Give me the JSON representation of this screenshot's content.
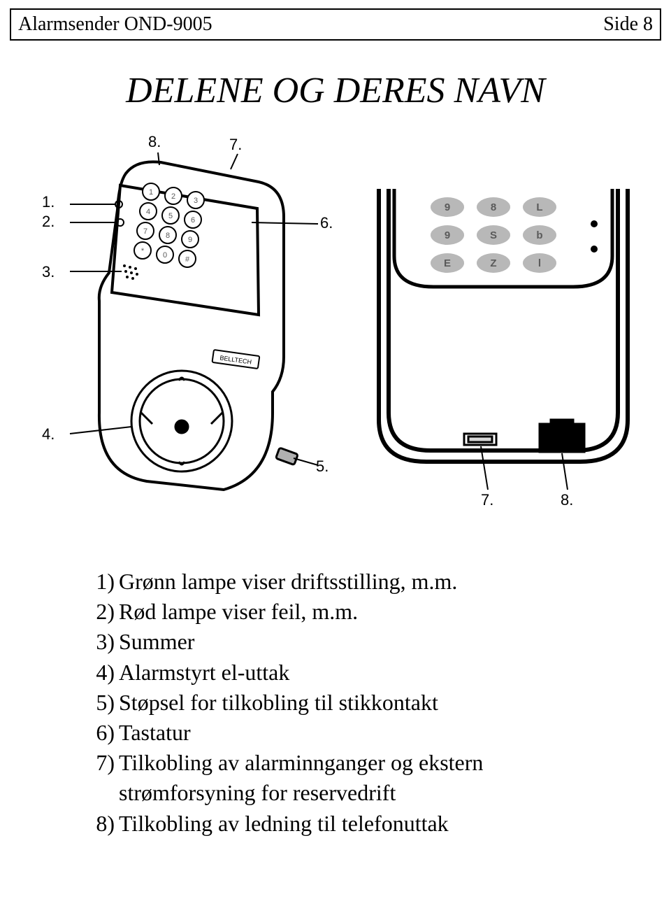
{
  "header": {
    "left": "Alarmsender OND-9005",
    "right": "Side 8"
  },
  "title": "DELENE OG DERES NAVN",
  "diagram": {
    "front_callouts": {
      "c1": "1.",
      "c2": "2.",
      "c3": "3.",
      "c4": "4.",
      "c5": "5.",
      "c6": "6.",
      "c7": "7.",
      "c8": "8."
    },
    "rear_callouts": {
      "c7": "7.",
      "c8": "8."
    },
    "keypad_front": [
      "1",
      "2",
      "3",
      "4",
      "5",
      "6",
      "7",
      "8",
      "9",
      "*",
      "0",
      "#"
    ],
    "keypad_rear": [
      "9",
      "8",
      "L",
      "9",
      "S",
      "b",
      "E",
      "Z",
      "l"
    ],
    "brand_label": "BELLTECH",
    "colors": {
      "line": "#000000",
      "key_fill": "#cfcfcf",
      "key_text": "#5a5a5a",
      "key_rear_fill": "#b8b8b8",
      "background": "#ffffff"
    }
  },
  "parts_list": [
    {
      "n": "1)",
      "t": "Grønn lampe viser driftsstilling, m.m."
    },
    {
      "n": "2)",
      "t": "Rød lampe viser feil, m.m."
    },
    {
      "n": "3)",
      "t": "Summer"
    },
    {
      "n": "4)",
      "t": "Alarmstyrt el-uttak"
    },
    {
      "n": "5)",
      "t": "Støpsel for tilkobling til stikkontakt"
    },
    {
      "n": "6)",
      "t": "Tastatur"
    },
    {
      "n": "7)",
      "t": "Tilkobling av alarminnganger og ekstern"
    },
    {
      "n": "",
      "t": "strømforsyning for reservedrift"
    },
    {
      "n": "8)",
      "t": "Tilkobling av ledning til telefonuttak"
    }
  ]
}
